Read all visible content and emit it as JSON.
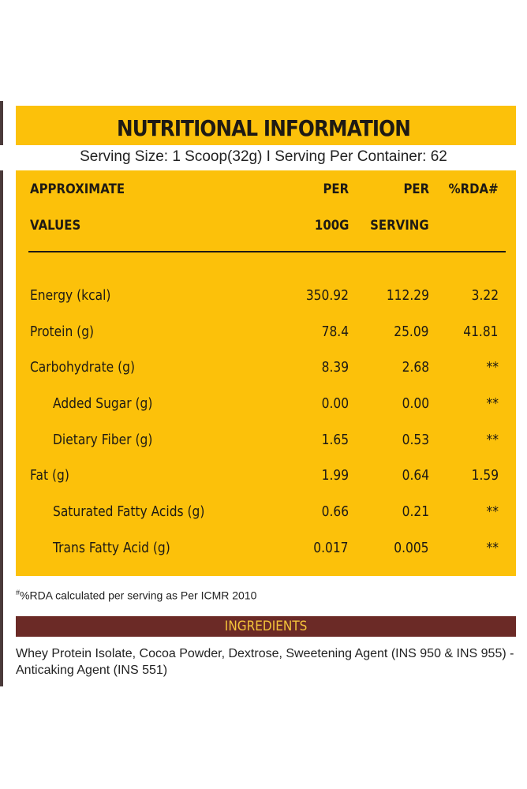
{
  "title": "NUTRITIONAL INFORMATION",
  "serving_line": "Serving Size: 1 Scoop(32g) I Serving Per Container: 62",
  "headers": {
    "col0_line1": "APPROXIMATE",
    "col0_line2": "VALUES",
    "col1_line1": "PER",
    "col1_line2": "100G",
    "col2_line1": "PER",
    "col2_line2": "SERVING",
    "col3_line1": "%RDA#"
  },
  "rows": [
    {
      "label": "Energy (kcal)",
      "per100": "350.92",
      "perServing": "112.29",
      "rda": "3.22"
    },
    {
      "label": "Protein (g)",
      "per100": "78.4",
      "perServing": "25.09",
      "rda": "41.81"
    },
    {
      "label": "Carbohydrate (g)",
      "per100": "8.39",
      "perServing": "2.68",
      "rda": "**"
    },
    {
      "label": "Added Sugar (g)",
      "per100": "0.00",
      "perServing": "0.00",
      "rda": "**"
    },
    {
      "label": "Dietary Fiber (g)",
      "per100": "1.65",
      "perServing": "0.53",
      "rda": "**"
    },
    {
      "label": "Fat (g)",
      "per100": "1.99",
      "perServing": "0.64",
      "rda": "1.59"
    },
    {
      "label": "Saturated Fatty Acids (g)",
      "per100": "0.66",
      "perServing": "0.21",
      "rda": "**"
    },
    {
      "label": "Trans Fatty Acid (g)",
      "per100": "0.017",
      "perServing": "0.005",
      "rda": "**"
    }
  ],
  "footnote_mark": "#",
  "footnote": "%RDA calculated per serving as Per ICMR 2010",
  "ingredients_title": "INGREDIENTS",
  "ingredients_line1": "Whey Protein Isolate, Cocoa Powder, Dextrose, Sweetening Agent (INS 950 & INS 955) -",
  "ingredients_line2": "Anticaking  Agent (INS 551)"
}
